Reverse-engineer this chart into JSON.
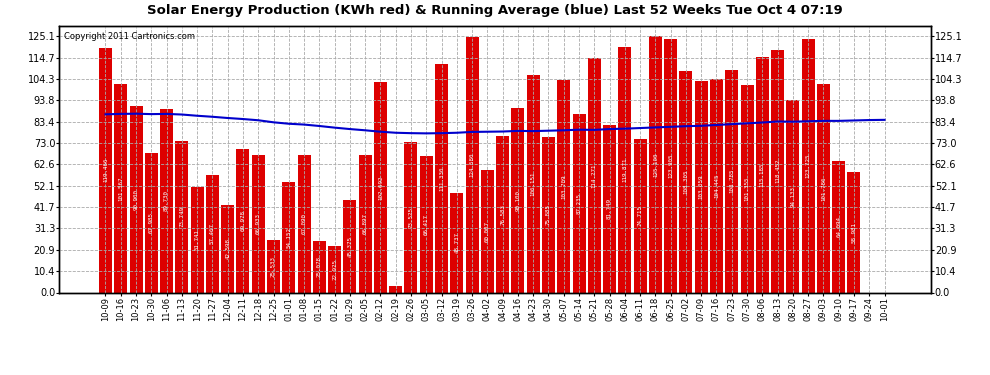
{
  "title": "Solar Energy Production (KWh red) & Running Average (blue) Last 52 Weeks Tue Oct 4 07:19",
  "copyright": "Copyright 2011 Cartronics.com",
  "bar_color": "#dd0000",
  "line_color": "#0000cc",
  "background_color": "#ffffff",
  "grid_color": "#aaaaaa",
  "ylim": [
    0,
    130
  ],
  "yticks": [
    0.0,
    10.4,
    20.9,
    31.3,
    41.7,
    52.1,
    62.6,
    73.0,
    83.4,
    93.8,
    104.3,
    114.7,
    125.1
  ],
  "categories": [
    "10-09",
    "10-16",
    "10-23",
    "10-30",
    "11-06",
    "11-13",
    "11-20",
    "11-27",
    "12-04",
    "12-11",
    "12-18",
    "12-25",
    "01-01",
    "01-08",
    "01-15",
    "01-22",
    "01-29",
    "02-05",
    "02-12",
    "02-19",
    "02-26",
    "03-05",
    "03-12",
    "03-19",
    "03-26",
    "04-02",
    "04-09",
    "04-16",
    "04-23",
    "04-30",
    "05-07",
    "05-14",
    "05-21",
    "05-28",
    "06-04",
    "06-11",
    "06-18",
    "06-25",
    "07-02",
    "07-09",
    "07-16",
    "07-23",
    "07-30",
    "08-06",
    "08-13",
    "08-20",
    "08-27",
    "09-03",
    "09-10",
    "09-17",
    "09-24",
    "10-01"
  ],
  "bar_values": [
    119.466,
    101.567,
    90.9,
    67.985,
    89.73,
    73.749,
    51.741,
    57.467,
    42.598,
    69.978,
    66.933,
    25.533,
    54.152,
    67.09,
    25.078,
    22.925,
    45.375,
    66.897,
    102.692,
    3.152,
    73.525,
    66.417,
    111.33,
    48.737,
    124.58,
    60.007,
    76.583,
    90.1,
    106.151,
    75.885,
    103.709,
    87.235,
    114.271,
    81.749,
    119.871,
    74.715,
    125.1,
    123.905,
    108.305,
    103.059,
    104.445,
    108.785,
    101.355,
    115.185,
    118.452,
    94.133,
    123.725,
    101.786,
    64.094,
    58.981,
    0.0,
    0.0
  ],
  "running_avg": [
    87.0,
    87.2,
    87.3,
    87.1,
    87.2,
    86.9,
    86.3,
    85.8,
    85.2,
    84.7,
    84.1,
    83.1,
    82.4,
    82.0,
    81.3,
    80.5,
    79.8,
    79.2,
    78.5,
    78.0,
    77.8,
    77.7,
    77.8,
    78.0,
    78.4,
    78.5,
    78.6,
    78.9,
    78.8,
    79.0,
    79.2,
    79.5,
    79.4,
    79.8,
    80.0,
    80.3,
    80.6,
    80.9,
    81.2,
    81.4,
    81.8,
    82.2,
    82.6,
    83.0,
    83.5,
    83.4,
    83.6,
    83.8,
    83.8,
    84.0,
    84.2,
    84.3
  ]
}
